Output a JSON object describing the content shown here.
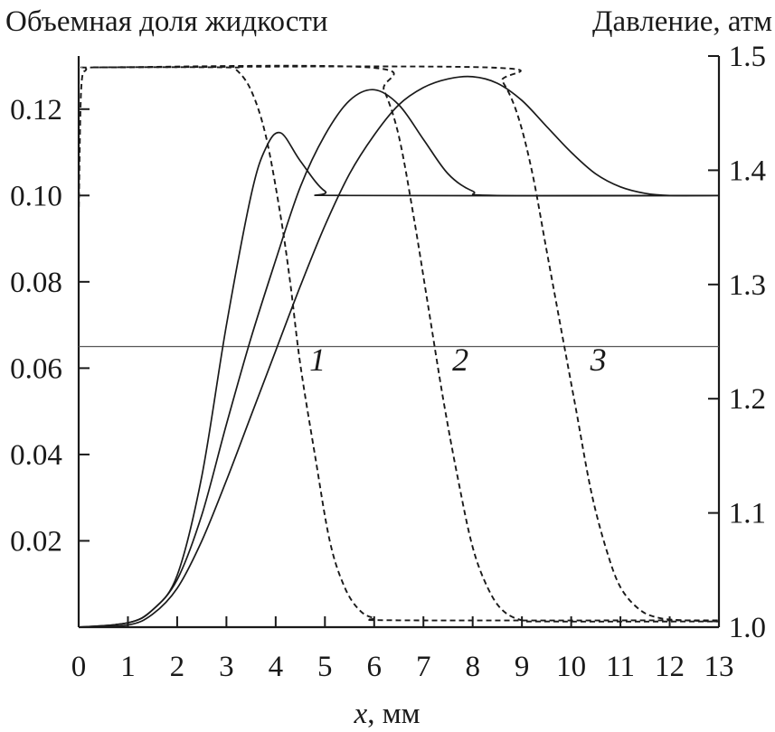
{
  "chart_data": {
    "type": "line",
    "left_axis_title": "Объемная доля жидкости",
    "right_axis_title": "Давление, атм",
    "xlabel_var": "x",
    "xlabel_unit": ", мм",
    "xlim": [
      0,
      13
    ],
    "ylim_left": [
      0,
      0.13
    ],
    "ylim_right": [
      1.0,
      1.5
    ],
    "x_ticks": [
      0,
      1,
      2,
      3,
      4,
      5,
      6,
      7,
      8,
      9,
      10,
      11,
      12,
      13
    ],
    "x_tick_labels": [
      "0",
      "1",
      "2",
      "3",
      "4",
      "5",
      "6",
      "7",
      "8",
      "9",
      "10",
      "11",
      "12",
      "13"
    ],
    "left_ticks": [
      0.02,
      0.04,
      0.06,
      0.08,
      0.1,
      0.12
    ],
    "left_tick_labels": [
      "0.02",
      "0.04",
      "0.06",
      "0.08",
      "0.10",
      "0.12"
    ],
    "right_ticks": [
      1.0,
      1.1,
      1.2,
      1.3,
      1.4,
      1.5
    ],
    "right_tick_labels": [
      "1.0",
      "1.1",
      "1.2",
      "1.3",
      "1.4",
      "1.5"
    ],
    "reference_line": {
      "axis": "left",
      "y": 0.065
    },
    "curve_labels": [
      {
        "text": "1",
        "x": 4.85,
        "y": 0.0595
      },
      {
        "text": "2",
        "x": 7.75,
        "y": 0.0595
      },
      {
        "text": "3",
        "x": 10.55,
        "y": 0.0595
      }
    ],
    "series": [
      {
        "kind": "liquid_fraction",
        "axis": "left",
        "style": "solid",
        "curve_label": "1",
        "points": [
          [
            0,
            0
          ],
          [
            1,
            0.001
          ],
          [
            1.5,
            0.004
          ],
          [
            2,
            0.012
          ],
          [
            2.5,
            0.035
          ],
          [
            3,
            0.07
          ],
          [
            3.5,
            0.1
          ],
          [
            3.8,
            0.111
          ],
          [
            4.1,
            0.1145
          ],
          [
            4.5,
            0.108
          ],
          [
            5,
            0.101
          ],
          [
            5.5,
            0.1
          ],
          [
            13,
            0.1
          ]
        ]
      },
      {
        "kind": "liquid_fraction",
        "axis": "left",
        "style": "solid",
        "curve_label": "2",
        "points": [
          [
            0,
            0
          ],
          [
            1,
            0.001
          ],
          [
            1.5,
            0.004
          ],
          [
            2,
            0.011
          ],
          [
            2.5,
            0.026
          ],
          [
            3,
            0.047
          ],
          [
            3.5,
            0.067
          ],
          [
            4,
            0.085
          ],
          [
            4.5,
            0.102
          ],
          [
            5,
            0.114
          ],
          [
            5.5,
            0.122
          ],
          [
            6,
            0.1245
          ],
          [
            6.5,
            0.121
          ],
          [
            7,
            0.113
          ],
          [
            7.5,
            0.105
          ],
          [
            8,
            0.101
          ],
          [
            8.5,
            0.1
          ],
          [
            13,
            0.1
          ]
        ]
      },
      {
        "kind": "liquid_fraction",
        "axis": "left",
        "style": "solid",
        "curve_label": "3",
        "points": [
          [
            0,
            0
          ],
          [
            1,
            0.0005
          ],
          [
            1.5,
            0.003
          ],
          [
            2,
            0.009
          ],
          [
            2.5,
            0.02
          ],
          [
            3,
            0.034
          ],
          [
            3.5,
            0.049
          ],
          [
            4,
            0.064
          ],
          [
            4.5,
            0.079
          ],
          [
            5,
            0.093
          ],
          [
            5.5,
            0.105
          ],
          [
            6,
            0.114
          ],
          [
            6.5,
            0.121
          ],
          [
            7,
            0.125
          ],
          [
            7.5,
            0.127
          ],
          [
            8,
            0.1275
          ],
          [
            8.5,
            0.126
          ],
          [
            9,
            0.122
          ],
          [
            9.5,
            0.116
          ],
          [
            10,
            0.11
          ],
          [
            10.5,
            0.105
          ],
          [
            11,
            0.102
          ],
          [
            11.5,
            0.1005
          ],
          [
            12,
            0.1
          ],
          [
            13,
            0.1
          ]
        ]
      },
      {
        "kind": "pressure",
        "axis": "right",
        "style": "dashed",
        "curve_label": "1",
        "points": [
          [
            0,
            1.36
          ],
          [
            0.05,
            1.47
          ],
          [
            0.15,
            1.488
          ],
          [
            0.3,
            1.49
          ],
          [
            3,
            1.49
          ],
          [
            3.2,
            1.488
          ],
          [
            3.5,
            1.47
          ],
          [
            3.8,
            1.43
          ],
          [
            4.1,
            1.36
          ],
          [
            4.3,
            1.3
          ],
          [
            4.5,
            1.23
          ],
          [
            4.8,
            1.15
          ],
          [
            5.1,
            1.075
          ],
          [
            5.4,
            1.035
          ],
          [
            5.7,
            1.015
          ],
          [
            6,
            1.008
          ],
          [
            6.5,
            1.006
          ],
          [
            13,
            1.006
          ]
        ]
      },
      {
        "kind": "pressure",
        "axis": "right",
        "style": "dashed",
        "curve_label": "2",
        "points": [
          [
            0.3,
            1.49
          ],
          [
            5.9,
            1.49
          ],
          [
            6.2,
            1.47
          ],
          [
            6.5,
            1.43
          ],
          [
            6.8,
            1.36
          ],
          [
            7.1,
            1.28
          ],
          [
            7.4,
            1.2
          ],
          [
            7.7,
            1.13
          ],
          [
            8,
            1.07
          ],
          [
            8.3,
            1.035
          ],
          [
            8.6,
            1.015
          ],
          [
            9,
            1.006
          ],
          [
            9.5,
            1.005
          ],
          [
            13,
            1.005
          ]
        ]
      },
      {
        "kind": "pressure",
        "axis": "right",
        "style": "dashed",
        "curve_label": "3",
        "points": [
          [
            0.3,
            1.49
          ],
          [
            8.3,
            1.49
          ],
          [
            8.6,
            1.478
          ],
          [
            8.9,
            1.45
          ],
          [
            9.2,
            1.4
          ],
          [
            9.5,
            1.33
          ],
          [
            9.8,
            1.26
          ],
          [
            10.1,
            1.19
          ],
          [
            10.4,
            1.12
          ],
          [
            10.7,
            1.07
          ],
          [
            11,
            1.035
          ],
          [
            11.4,
            1.015
          ],
          [
            11.8,
            1.008
          ],
          [
            12.3,
            1.006
          ],
          [
            13,
            1.005
          ]
        ]
      }
    ]
  }
}
